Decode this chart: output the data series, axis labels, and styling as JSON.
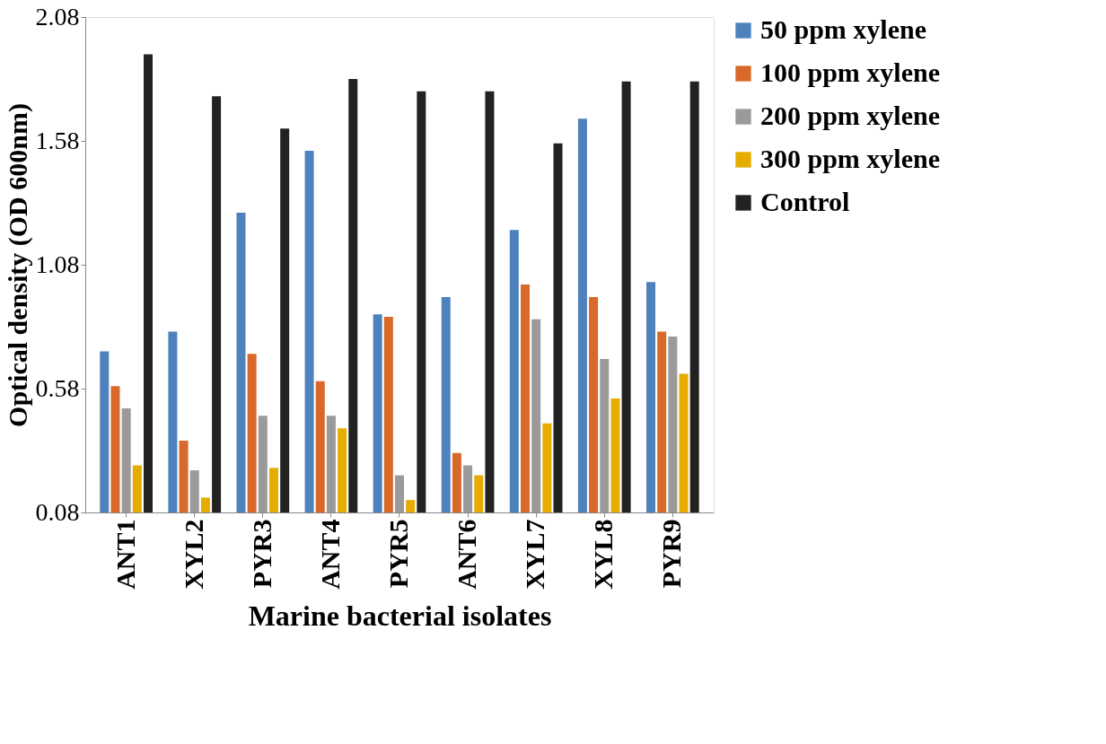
{
  "chart_data": {
    "type": "bar",
    "xlabel": "Marine bacterial isolates",
    "ylabel": "Optical density (OD 600nm)",
    "categories": [
      "ANT1",
      "XYL2",
      "PYR3",
      "ANT4",
      "PYR5",
      "ANT6",
      "XYL7",
      "XYL8",
      "PYR9"
    ],
    "series": [
      {
        "name": "50  ppm xylene",
        "color": "#4f81bd",
        "values": [
          0.73,
          0.81,
          1.29,
          1.54,
          0.88,
          0.95,
          1.22,
          1.67,
          1.01
        ]
      },
      {
        "name": "100 ppm xylene",
        "color": "#d8692a",
        "values": [
          0.59,
          0.37,
          0.72,
          0.61,
          0.87,
          0.32,
          1.0,
          0.95,
          0.81
        ]
      },
      {
        "name": " 200 ppm xylene",
        "color": "#9a9a9a",
        "values": [
          0.5,
          0.25,
          0.47,
          0.47,
          0.23,
          0.27,
          0.86,
          0.7,
          0.79
        ]
      },
      {
        "name": "300 ppm xylene",
        "color": "#e6ac00",
        "values": [
          0.27,
          0.14,
          0.26,
          0.42,
          0.13,
          0.23,
          0.44,
          0.54,
          0.64
        ]
      },
      {
        "name": "Control",
        "color": "#222222",
        "values": [
          1.93,
          1.76,
          1.63,
          1.83,
          1.78,
          1.78,
          1.57,
          1.82,
          1.82
        ]
      }
    ],
    "ylim": [
      0.08,
      2.08
    ],
    "yticks": [
      0.08,
      0.58,
      1.08,
      1.58,
      2.08
    ],
    "grid": false,
    "legend": "top right"
  }
}
